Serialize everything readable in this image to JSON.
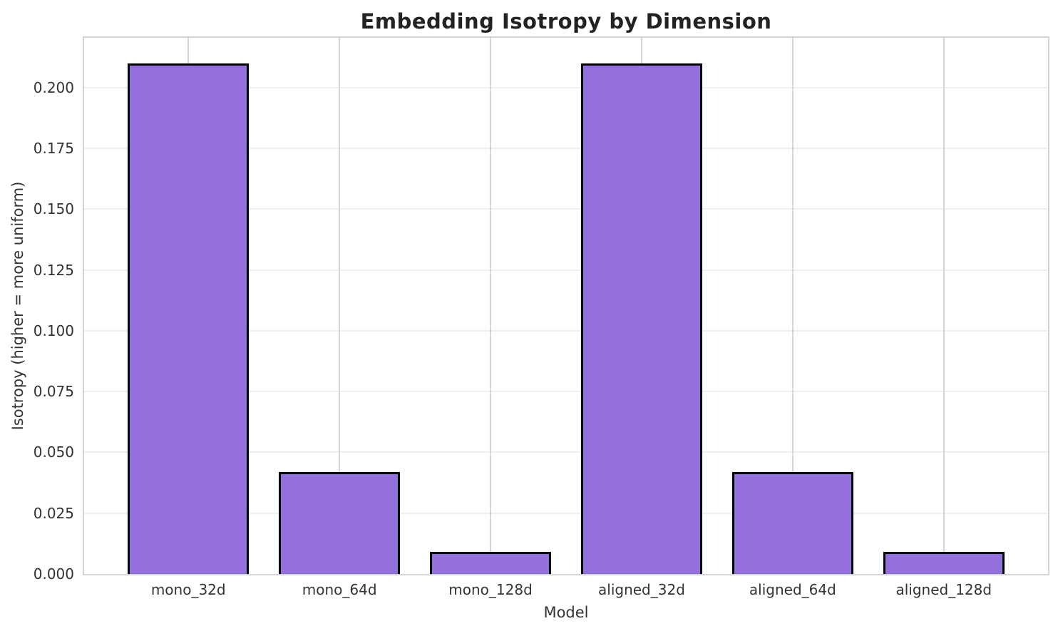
{
  "chart_data": {
    "type": "bar",
    "title": "Embedding Isotropy by Dimension",
    "xlabel": "Model",
    "ylabel": "Isotropy (higher = more uniform)",
    "categories": [
      "mono_32d",
      "mono_64d",
      "mono_128d",
      "aligned_32d",
      "aligned_64d",
      "aligned_128d"
    ],
    "values": [
      0.21,
      0.042,
      0.009,
      0.21,
      0.042,
      0.009
    ],
    "ylim": [
      0,
      0.2205
    ],
    "yticks": {
      "values": [
        0.0,
        0.025,
        0.05,
        0.075,
        0.1,
        0.125,
        0.15,
        0.175,
        0.2
      ],
      "labels": [
        "0.000",
        "0.025",
        "0.050",
        "0.075",
        "0.100",
        "0.125",
        "0.150",
        "0.175",
        "0.200"
      ]
    },
    "grid": "both",
    "legend": "none",
    "style": {
      "bar_fill": "#9370DB",
      "bar_edge": "#000000",
      "grid_h": "#eeeeee",
      "grid_v": "#d6d6d6",
      "spine": "#d4d4d4",
      "title_color": "#222222",
      "text_color": "#333333",
      "background": "#ffffff"
    }
  }
}
